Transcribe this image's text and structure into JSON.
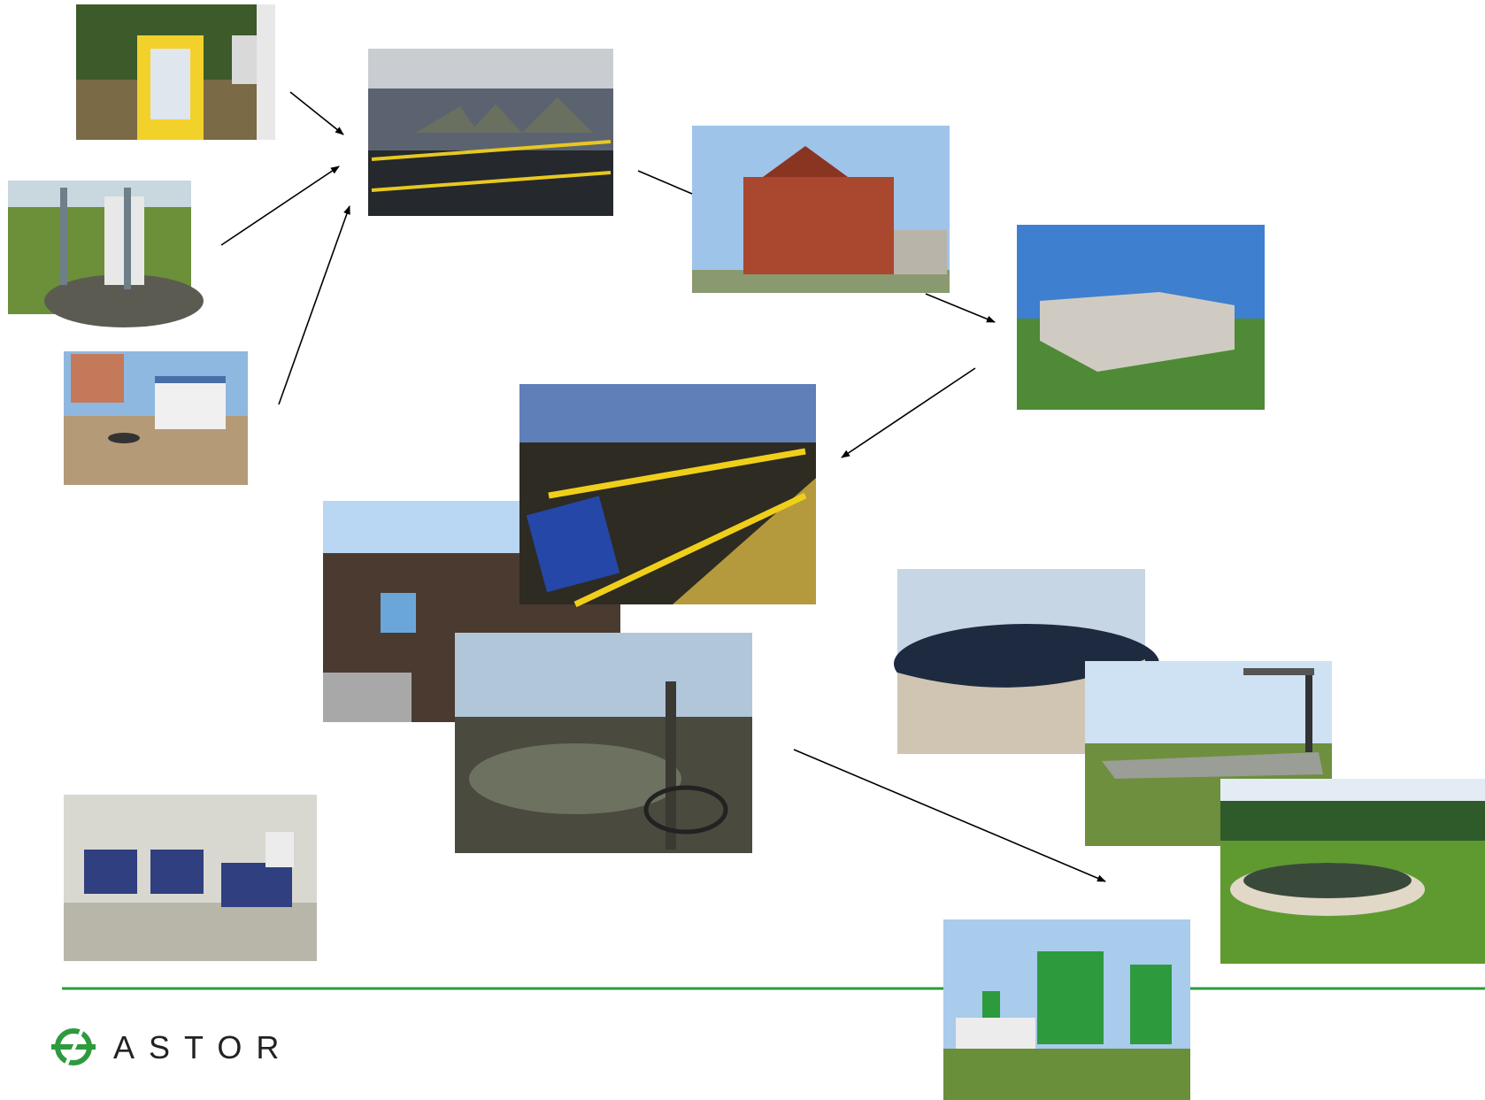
{
  "logo": {
    "text": "ASTOR"
  }
}
